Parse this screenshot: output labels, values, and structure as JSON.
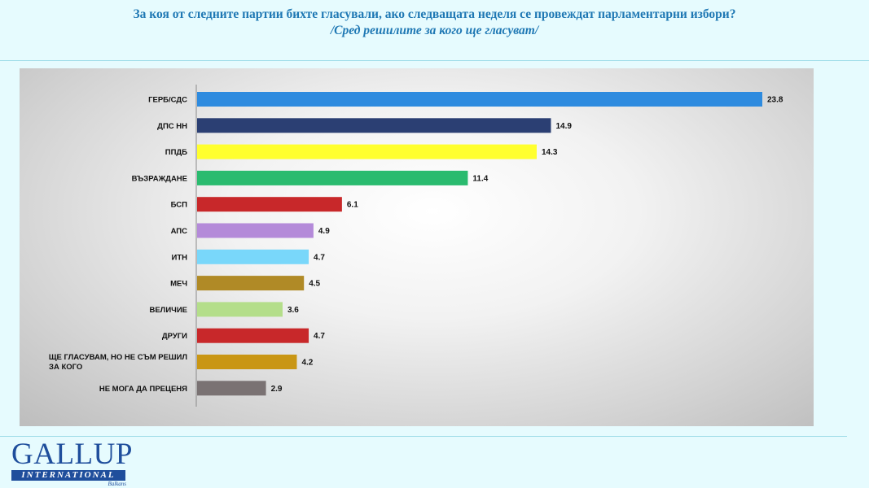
{
  "header": {
    "title": "За коя от следните партии бихте  гласували,  ако следващата неделя се провеждат парламентарни избори?",
    "subtitle": "/Сред решилите за кого ще гласуват/"
  },
  "logo": {
    "main": "GALLUP",
    "bar": "INTERNATIONAL",
    "sub": "Balkans"
  },
  "chart_data": {
    "type": "bar",
    "orientation": "horizontal",
    "categories": [
      [
        "ГЕРБ/СДС"
      ],
      [
        "ДПС НН"
      ],
      [
        "ППДБ"
      ],
      [
        "ВЪЗРАЖДАНЕ"
      ],
      [
        "БСП"
      ],
      [
        "АПС"
      ],
      [
        "ИТН"
      ],
      [
        "МЕЧ"
      ],
      [
        "ВЕЛИЧИЕ"
      ],
      [
        "ДРУГИ"
      ],
      [
        "ЩЕ ГЛАСУВАМ, НО НЕ СЪМ РЕШИЛ",
        "ЗА КОГО"
      ],
      [
        "НЕ МОГА ДА ПРЕЦЕНЯ"
      ]
    ],
    "values": [
      23.8,
      14.9,
      14.3,
      11.4,
      6.1,
      4.9,
      4.7,
      4.5,
      3.6,
      4.7,
      4.2,
      2.9
    ],
    "value_labels": [
      "23.8",
      "14.9",
      "14.3",
      "11.4",
      "6.1",
      "4.9",
      "4.7",
      "4.5",
      "3.6",
      "4.7",
      "4.2",
      "2.9"
    ],
    "colors": [
      "#2e8bdf",
      "#2b3f73",
      "#ffff2e",
      "#2abb6f",
      "#c8282a",
      "#b48ad9",
      "#79d7fa",
      "#b08a26",
      "#b4de8a",
      "#c8282a",
      "#c99614",
      "#7a7273"
    ],
    "xlim": [
      0,
      25
    ],
    "grid": false,
    "legend": "none"
  }
}
